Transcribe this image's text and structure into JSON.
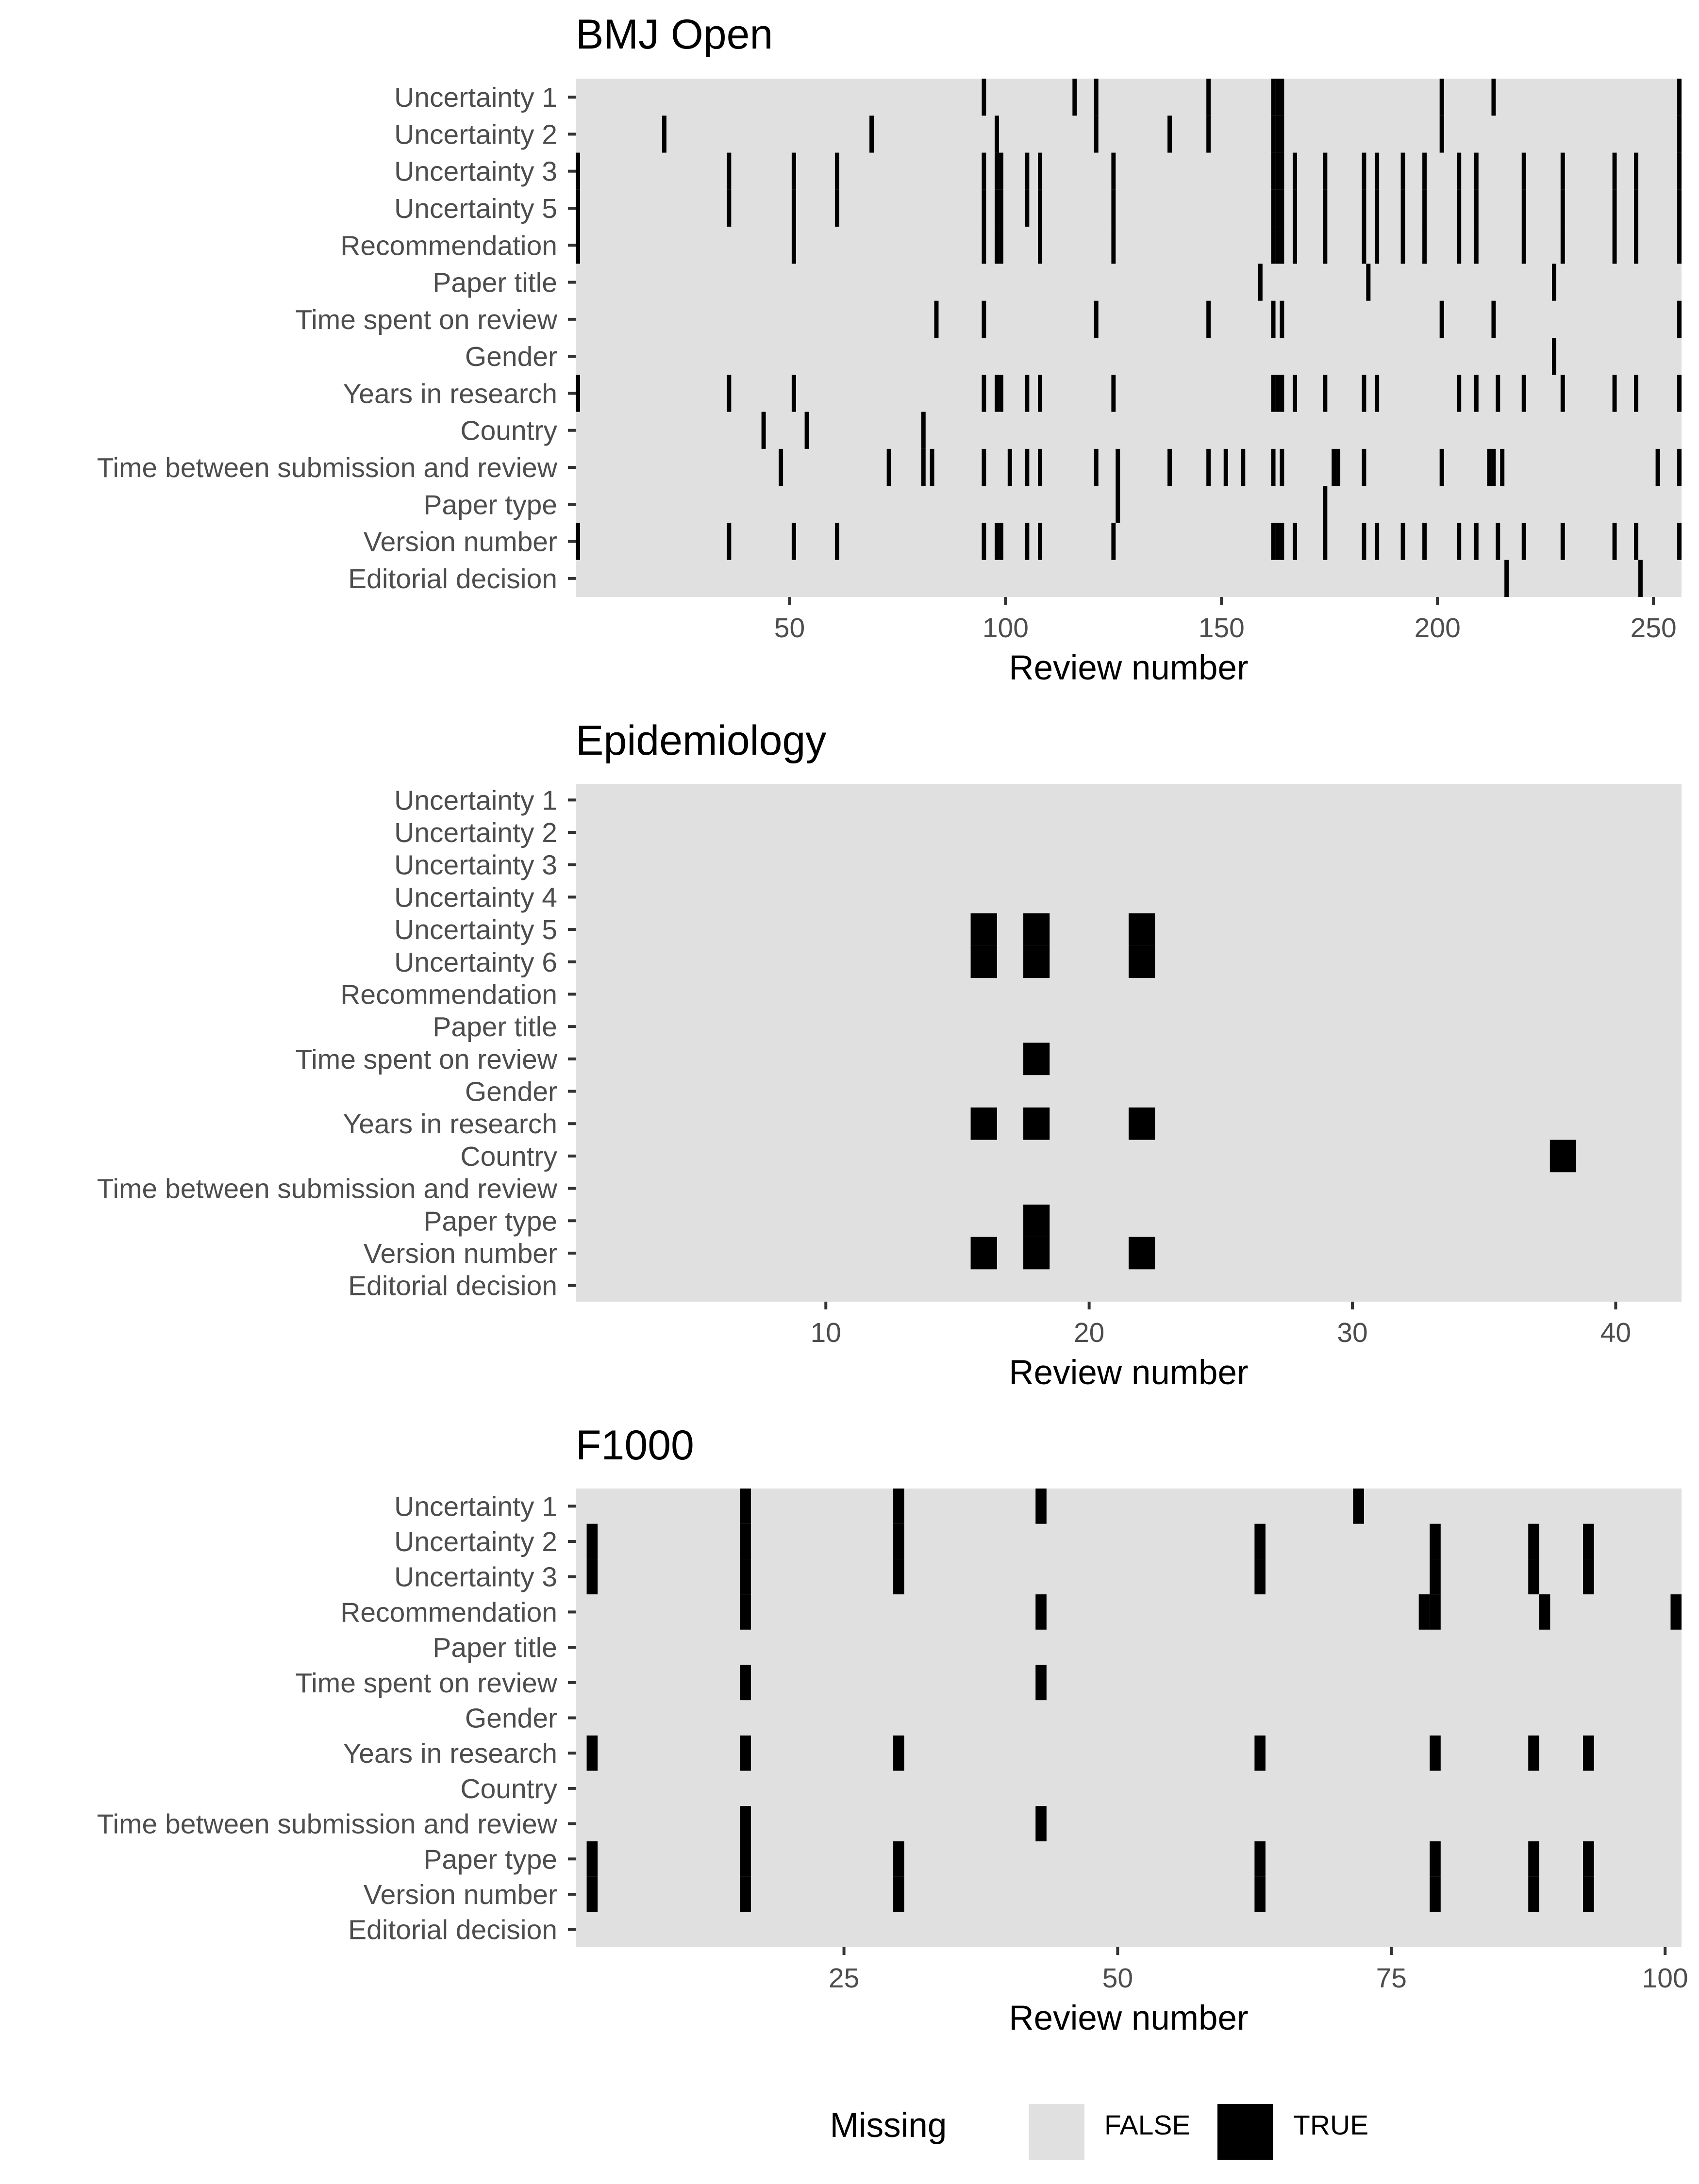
{
  "chart_data": [
    {
      "type": "heatmap",
      "title": "BMJ Open",
      "xlabel": "Review number",
      "ylabel": "",
      "xlim": [
        0.5,
        256.5
      ],
      "xticks": [
        50,
        100,
        150,
        200,
        250
      ],
      "variables": [
        "Uncertainty 1",
        "Uncertainty 2",
        "Uncertainty 3",
        "Uncertainty 5",
        "Recommendation",
        "Paper title",
        "Time spent on review",
        "Gender",
        "Years in research",
        "Country",
        "Time between submission and review",
        "Paper type",
        "Version number",
        "Editorial decision"
      ],
      "missing_true": {
        "Uncertainty 1": [
          95,
          116,
          121,
          147,
          162,
          163,
          164,
          201,
          213,
          256
        ],
        "Uncertainty 2": [
          21,
          69,
          98,
          121,
          138,
          147,
          162,
          163,
          164,
          201,
          256
        ],
        "Uncertainty 3": [
          1,
          36,
          51,
          61,
          95,
          98,
          99,
          105,
          108,
          125,
          162,
          163,
          164,
          167,
          174,
          183,
          186,
          192,
          197,
          205,
          209,
          220,
          229,
          241,
          246,
          256
        ],
        "Uncertainty 5": [
          1,
          36,
          51,
          61,
          95,
          98,
          99,
          105,
          108,
          125,
          162,
          163,
          164,
          167,
          174,
          183,
          186,
          192,
          197,
          205,
          209,
          220,
          229,
          241,
          246,
          256
        ],
        "Recommendation": [
          1,
          51,
          95,
          98,
          99,
          108,
          125,
          162,
          163,
          164,
          167,
          174,
          183,
          186,
          192,
          197,
          205,
          209,
          220,
          229,
          241,
          246,
          256
        ],
        "Paper title": [
          159,
          184,
          227
        ],
        "Time spent on review": [
          84,
          95,
          121,
          147,
          162,
          164,
          201,
          213,
          256
        ],
        "Gender": [
          227
        ],
        "Years in research": [
          1,
          36,
          51,
          95,
          98,
          99,
          105,
          108,
          125,
          162,
          163,
          164,
          167,
          174,
          183,
          186,
          205,
          209,
          214,
          220,
          229,
          241,
          246,
          256
        ],
        "Country": [
          44,
          54,
          81
        ],
        "Time between submission and review": [
          48,
          73,
          81,
          83,
          95,
          101,
          105,
          108,
          121,
          126,
          138,
          147,
          151,
          155,
          162,
          164,
          176,
          177,
          183,
          201,
          212,
          213,
          215,
          251,
          256
        ],
        "Paper type": [
          126,
          174
        ],
        "Version number": [
          1,
          36,
          51,
          61,
          95,
          98,
          99,
          105,
          108,
          125,
          162,
          163,
          164,
          167,
          174,
          183,
          186,
          192,
          197,
          205,
          209,
          214,
          220,
          229,
          241,
          246,
          256
        ],
        "Editorial decision": [
          216,
          247
        ]
      }
    },
    {
      "type": "heatmap",
      "title": "Epidemiology",
      "xlabel": "Review number",
      "ylabel": "",
      "xlim": [
        0.5,
        42.5
      ],
      "xticks": [
        10,
        20,
        30,
        40
      ],
      "variables": [
        "Uncertainty 1",
        "Uncertainty 2",
        "Uncertainty 3",
        "Uncertainty 4",
        "Uncertainty 5",
        "Uncertainty 6",
        "Recommendation",
        "Paper title",
        "Time spent on review",
        "Gender",
        "Years in research",
        "Country",
        "Time between submission and review",
        "Paper type",
        "Version number",
        "Editorial decision"
      ],
      "missing_true": {
        "Uncertainty 5": [
          16,
          18,
          22
        ],
        "Uncertainty 6": [
          16,
          18,
          22
        ],
        "Time spent on review": [
          18
        ],
        "Years in research": [
          16,
          18,
          22
        ],
        "Country": [
          38
        ],
        "Paper type": [
          18
        ],
        "Version number": [
          16,
          18,
          22
        ]
      }
    },
    {
      "type": "heatmap",
      "title": "F1000",
      "xlabel": "Review number",
      "ylabel": "",
      "xlim": [
        0.5,
        101.5
      ],
      "xticks": [
        25,
        50,
        75,
        100
      ],
      "variables": [
        "Uncertainty 1",
        "Uncertainty 2",
        "Uncertainty 3",
        "Recommendation",
        "Paper title",
        "Time spent on review",
        "Gender",
        "Years in research",
        "Country",
        "Time between submission and review",
        "Paper type",
        "Version number",
        "Editorial decision"
      ],
      "missing_true": {
        "Uncertainty 1": [
          16,
          30,
          43,
          72
        ],
        "Uncertainty 2": [
          2,
          16,
          30,
          63,
          79,
          88,
          93
        ],
        "Uncertainty 3": [
          2,
          16,
          30,
          63,
          79,
          88,
          93
        ],
        "Recommendation": [
          16,
          43,
          78,
          79,
          89,
          101
        ],
        "Time spent on review": [
          16,
          43
        ],
        "Years in research": [
          2,
          16,
          30,
          63,
          79,
          88,
          93
        ],
        "Time between submission and review": [
          16,
          43
        ],
        "Paper type": [
          2,
          16,
          30,
          63,
          79,
          88,
          93
        ],
        "Version number": [
          2,
          16,
          30,
          63,
          79,
          88,
          93
        ]
      }
    }
  ],
  "legend": {
    "title": "Missing",
    "items": [
      {
        "label": "FALSE",
        "color": "#e0e0e0"
      },
      {
        "label": "TRUE",
        "color": "#000000"
      }
    ],
    "placement": "bottom"
  },
  "colors": {
    "panel_bg": "#e0e0e0",
    "true_fill": "#000000",
    "axis_text": "#4d4d4d",
    "tick": "#333333"
  }
}
